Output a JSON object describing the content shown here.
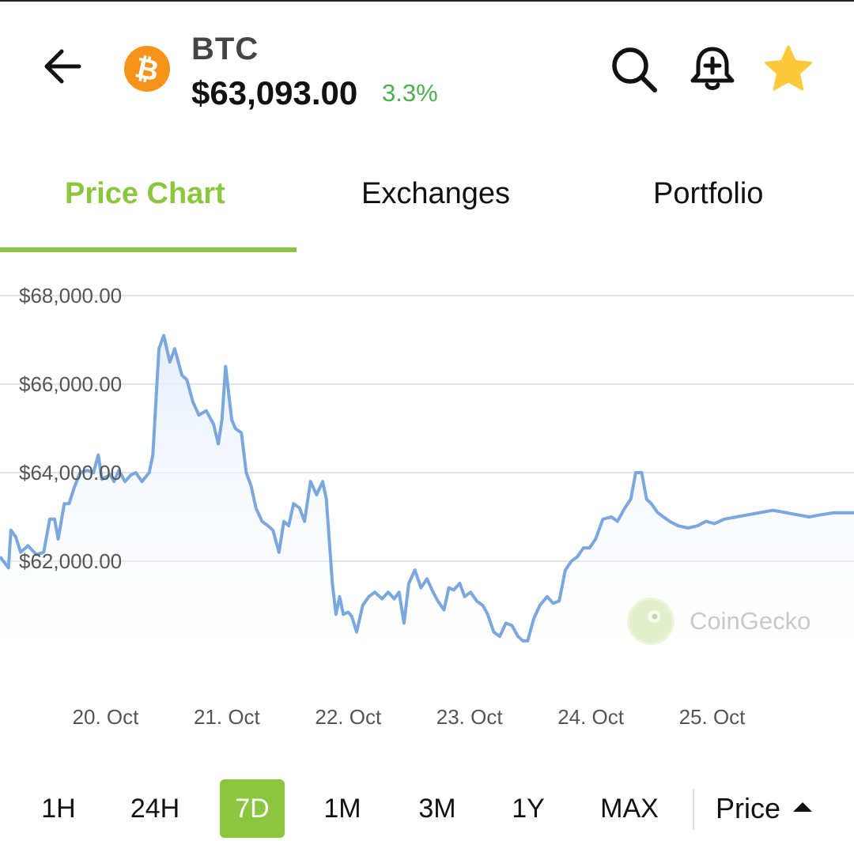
{
  "header": {
    "symbol": "BTC",
    "price": "$63,093.00",
    "change": "3.3%",
    "icons": [
      "back-arrow-icon",
      "bitcoin-logo",
      "search-icon",
      "bell-plus-icon",
      "star-icon"
    ]
  },
  "tabs": [
    {
      "label": "Price Chart",
      "active": true
    },
    {
      "label": "Exchanges",
      "active": false
    },
    {
      "label": "Portfolio",
      "active": false
    }
  ],
  "chart_data": {
    "type": "area",
    "y_ticks": [
      "$68,000.00",
      "$66,000.00",
      "$64,000.00",
      "$62,000.00"
    ],
    "ylim": [
      59000,
      68600
    ],
    "x_ticks": [
      "20. Oct",
      "21. Oct",
      "22. Oct",
      "23. Oct",
      "24. Oct",
      "25. Oct"
    ],
    "x_ticks_day": [
      20,
      21,
      22,
      23,
      24,
      25
    ],
    "xlim_days": [
      19.13,
      26.17
    ],
    "line_color": "#7aa8de",
    "fill_color": "#e6eefb",
    "grid": true,
    "points": [
      [
        19.13,
        62100
      ],
      [
        19.2,
        61850
      ],
      [
        19.22,
        62700
      ],
      [
        19.26,
        62550
      ],
      [
        19.3,
        62200
      ],
      [
        19.36,
        62350
      ],
      [
        19.43,
        62150
      ],
      [
        19.49,
        62200
      ],
      [
        19.54,
        62950
      ],
      [
        19.58,
        62950
      ],
      [
        19.61,
        62500
      ],
      [
        19.66,
        63300
      ],
      [
        19.7,
        63300
      ],
      [
        19.74,
        63650
      ],
      [
        19.79,
        64000
      ],
      [
        19.85,
        64050
      ],
      [
        19.9,
        64000
      ],
      [
        19.94,
        64400
      ],
      [
        19.97,
        63850
      ],
      [
        20.0,
        63900
      ],
      [
        20.04,
        63950
      ],
      [
        20.07,
        63800
      ],
      [
        20.11,
        64050
      ],
      [
        20.16,
        63800
      ],
      [
        20.21,
        63950
      ],
      [
        20.25,
        64000
      ],
      [
        20.3,
        63800
      ],
      [
        20.36,
        64000
      ],
      [
        20.39,
        64400
      ],
      [
        20.44,
        66800
      ],
      [
        20.48,
        67100
      ],
      [
        20.53,
        66500
      ],
      [
        20.57,
        66800
      ],
      [
        20.63,
        66200
      ],
      [
        20.67,
        66100
      ],
      [
        20.72,
        65600
      ],
      [
        20.77,
        65300
      ],
      [
        20.83,
        65400
      ],
      [
        20.89,
        65100
      ],
      [
        20.93,
        64650
      ],
      [
        20.96,
        65200
      ],
      [
        20.99,
        66400
      ],
      [
        21.04,
        65200
      ],
      [
        21.07,
        65000
      ],
      [
        21.12,
        64900
      ],
      [
        21.16,
        64000
      ],
      [
        21.2,
        63700
      ],
      [
        21.24,
        63200
      ],
      [
        21.29,
        62900
      ],
      [
        21.34,
        62800
      ],
      [
        21.38,
        62700
      ],
      [
        21.43,
        62200
      ],
      [
        21.47,
        62900
      ],
      [
        21.51,
        62800
      ],
      [
        21.55,
        63300
      ],
      [
        21.6,
        63200
      ],
      [
        21.64,
        62900
      ],
      [
        21.69,
        63800
      ],
      [
        21.74,
        63500
      ],
      [
        21.79,
        63800
      ],
      [
        21.82,
        63400
      ],
      [
        21.87,
        61500
      ],
      [
        21.9,
        60800
      ],
      [
        21.93,
        61200
      ],
      [
        21.96,
        60800
      ],
      [
        22.0,
        60850
      ],
      [
        22.03,
        60750
      ],
      [
        22.07,
        60400
      ],
      [
        22.12,
        61000
      ],
      [
        22.17,
        61200
      ],
      [
        22.22,
        61300
      ],
      [
        22.28,
        61150
      ],
      [
        22.33,
        61300
      ],
      [
        22.38,
        61150
      ],
      [
        22.42,
        61300
      ],
      [
        22.46,
        60600
      ],
      [
        22.5,
        61500
      ],
      [
        22.55,
        61800
      ],
      [
        22.6,
        61400
      ],
      [
        22.65,
        61600
      ],
      [
        22.7,
        61300
      ],
      [
        22.74,
        61100
      ],
      [
        22.79,
        60900
      ],
      [
        22.83,
        61400
      ],
      [
        22.87,
        61350
      ],
      [
        22.92,
        61500
      ],
      [
        22.96,
        61200
      ],
      [
        23.01,
        61300
      ],
      [
        23.06,
        61100
      ],
      [
        23.11,
        61000
      ],
      [
        23.15,
        60800
      ],
      [
        23.2,
        60400
      ],
      [
        23.25,
        60300
      ],
      [
        23.3,
        60600
      ],
      [
        23.35,
        60550
      ],
      [
        23.4,
        60300
      ],
      [
        23.44,
        60200
      ],
      [
        23.48,
        60200
      ],
      [
        23.53,
        60700
      ],
      [
        23.58,
        61000
      ],
      [
        23.64,
        61200
      ],
      [
        23.69,
        61050
      ],
      [
        23.74,
        61100
      ],
      [
        23.79,
        61800
      ],
      [
        23.84,
        62000
      ],
      [
        23.89,
        62100
      ],
      [
        23.94,
        62300
      ],
      [
        23.99,
        62300
      ],
      [
        24.04,
        62500
      ],
      [
        24.1,
        62950
      ],
      [
        24.17,
        63000
      ],
      [
        24.22,
        62900
      ],
      [
        24.28,
        63200
      ],
      [
        24.33,
        63400
      ],
      [
        24.37,
        64000
      ],
      [
        24.42,
        64000
      ],
      [
        24.46,
        63400
      ],
      [
        24.5,
        63300
      ],
      [
        24.55,
        63100
      ],
      [
        24.6,
        63000
      ],
      [
        24.65,
        62900
      ],
      [
        24.72,
        62800
      ],
      [
        24.8,
        62750
      ],
      [
        24.88,
        62800
      ],
      [
        24.95,
        62900
      ],
      [
        25.02,
        62850
      ],
      [
        25.1,
        62950
      ],
      [
        25.2,
        63000
      ],
      [
        25.3,
        63050
      ],
      [
        25.4,
        63100
      ],
      [
        25.5,
        63150
      ],
      [
        25.6,
        63100
      ],
      [
        25.7,
        63050
      ],
      [
        25.8,
        63000
      ],
      [
        25.9,
        63050
      ],
      [
        26.0,
        63093
      ],
      [
        26.17,
        63093
      ]
    ]
  },
  "watermark": {
    "text": "CoinGecko"
  },
  "ranges": [
    {
      "label": "1H",
      "active": false
    },
    {
      "label": "24H",
      "active": false
    },
    {
      "label": "7D",
      "active": true
    },
    {
      "label": "1M",
      "active": false
    },
    {
      "label": "3M",
      "active": false
    },
    {
      "label": "1Y",
      "active": false
    },
    {
      "label": "MAX",
      "active": false
    }
  ],
  "metric_selector": {
    "label": "Price"
  }
}
